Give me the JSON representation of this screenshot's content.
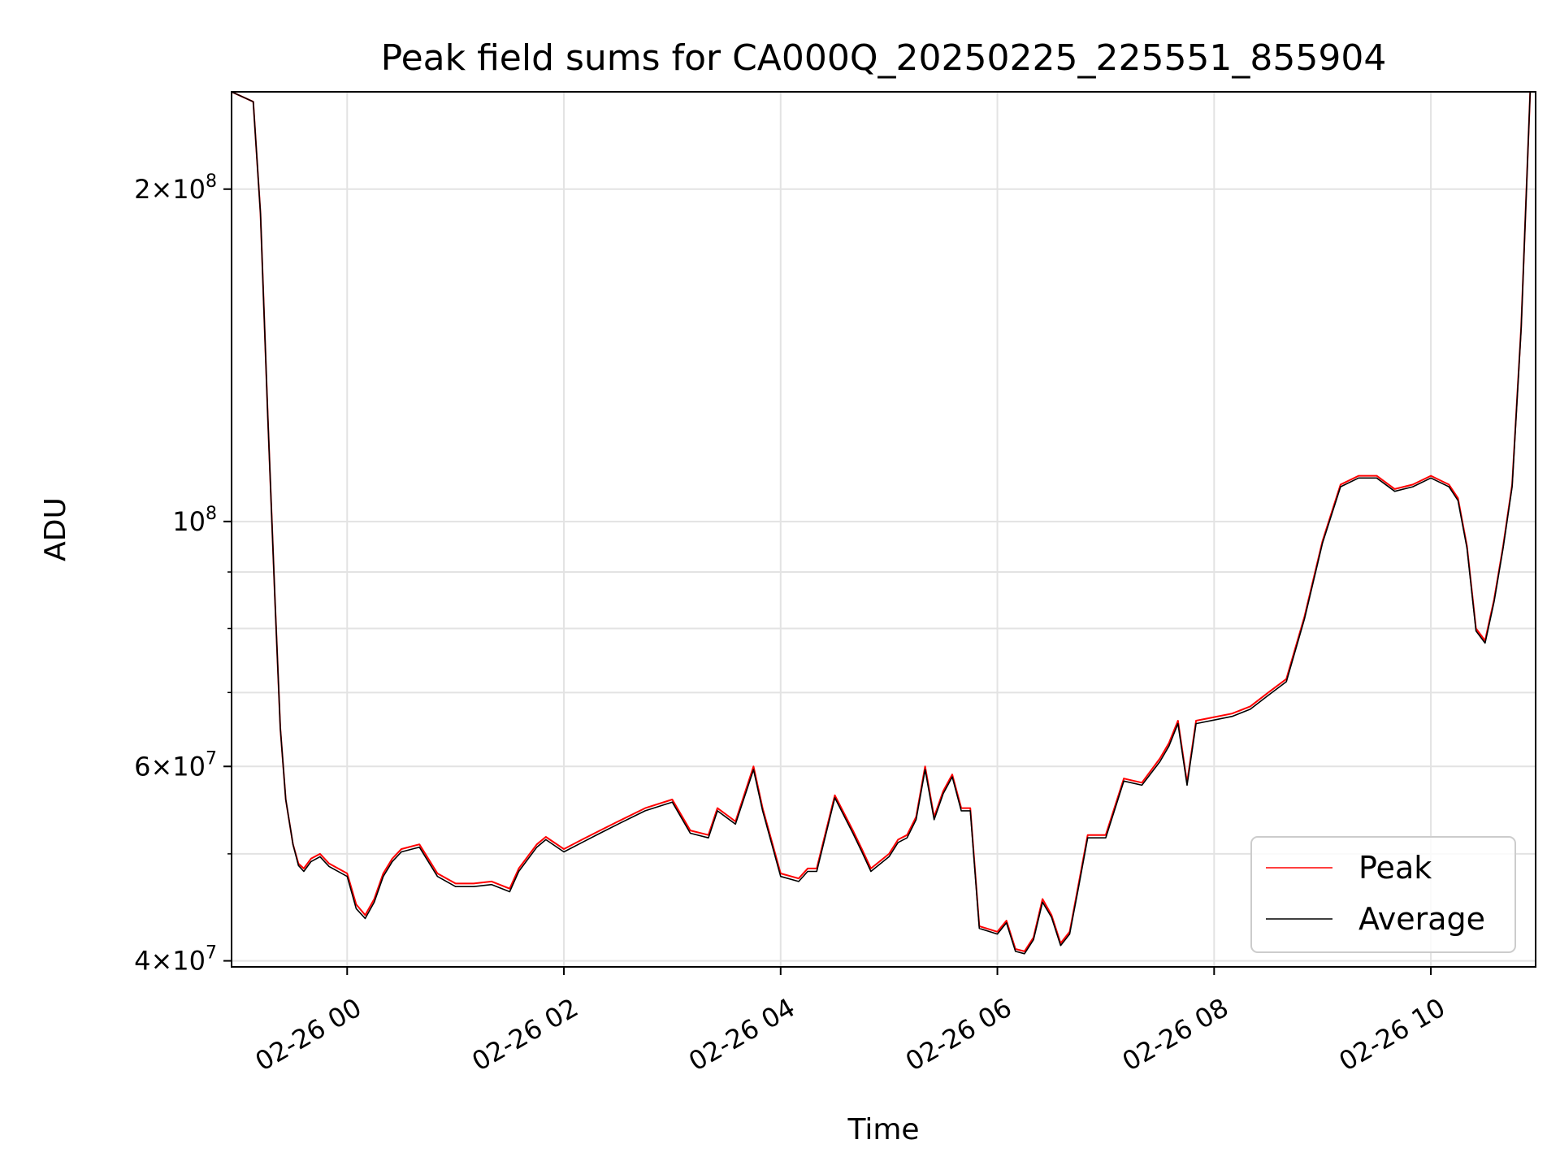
{
  "chart_data": {
    "type": "line",
    "title": "Peak field sums for CA000Q_20250225_225551_855904",
    "xlabel": "Time",
    "ylabel": "ADU",
    "y_scale": "log",
    "ylim": [
      39500000,
      245000000
    ],
    "xlim": [
      "2025-02-25 22:56",
      "2025-02-26 10:58"
    ],
    "grid": true,
    "legend_position": "lower-right",
    "x_ticks": [
      "2025-02-26 00:00",
      "2025-02-26 02:00",
      "2025-02-26 04:00",
      "2025-02-26 06:00",
      "2025-02-26 08:00",
      "2025-02-26 10:00"
    ],
    "x_tick_labels": [
      "02-26 00",
      "02-26 02",
      "02-26 04",
      "02-26 06",
      "02-26 08",
      "02-26 10"
    ],
    "y_major_ticks": [
      40000000,
      60000000,
      100000000,
      200000000
    ],
    "y_major_labels": [
      {
        "mantissa": "4",
        "exponent": "7"
      },
      {
        "mantissa": "6",
        "exponent": "7"
      },
      {
        "mantissa": "",
        "exponent": "8"
      },
      {
        "mantissa": "2",
        "exponent": "8"
      }
    ],
    "y_minor_ticks": [
      50000000,
      70000000,
      80000000,
      90000000
    ],
    "series": [
      {
        "name": "Peak",
        "color": "#ff0000",
        "x": [
          "2025-02-25 22:56",
          "2025-02-25 23:08",
          "2025-02-25 23:12",
          "2025-02-25 23:16",
          "2025-02-25 23:20",
          "2025-02-25 23:23",
          "2025-02-25 23:26",
          "2025-02-25 23:30",
          "2025-02-25 23:33",
          "2025-02-25 23:36",
          "2025-02-25 23:40",
          "2025-02-25 23:45",
          "2025-02-25 23:50",
          "2025-02-26 00:00",
          "2025-02-26 00:05",
          "2025-02-26 00:10",
          "2025-02-26 00:15",
          "2025-02-26 00:20",
          "2025-02-26 00:25",
          "2025-02-26 00:30",
          "2025-02-26 00:40",
          "2025-02-26 00:50",
          "2025-02-26 01:00",
          "2025-02-26 01:10",
          "2025-02-26 01:20",
          "2025-02-26 01:30",
          "2025-02-26 01:35",
          "2025-02-26 01:45",
          "2025-02-26 01:50",
          "2025-02-26 02:00",
          "2025-02-26 02:10",
          "2025-02-26 02:20",
          "2025-02-26 02:30",
          "2025-02-26 02:45",
          "2025-02-26 03:00",
          "2025-02-26 03:10",
          "2025-02-26 03:20",
          "2025-02-26 03:25",
          "2025-02-26 03:35",
          "2025-02-26 03:45",
          "2025-02-26 03:50",
          "2025-02-26 04:00",
          "2025-02-26 04:10",
          "2025-02-26 04:15",
          "2025-02-26 04:20",
          "2025-02-26 04:30",
          "2025-02-26 04:40",
          "2025-02-26 04:45",
          "2025-02-26 04:50",
          "2025-02-26 05:00",
          "2025-02-26 05:05",
          "2025-02-26 05:10",
          "2025-02-26 05:15",
          "2025-02-26 05:20",
          "2025-02-26 05:25",
          "2025-02-26 05:30",
          "2025-02-26 05:35",
          "2025-02-26 05:40",
          "2025-02-26 05:45",
          "2025-02-26 05:50",
          "2025-02-26 06:00",
          "2025-02-26 06:05",
          "2025-02-26 06:10",
          "2025-02-26 06:15",
          "2025-02-26 06:20",
          "2025-02-26 06:25",
          "2025-02-26 06:30",
          "2025-02-26 06:35",
          "2025-02-26 06:40",
          "2025-02-26 06:45",
          "2025-02-26 06:50",
          "2025-02-26 07:00",
          "2025-02-26 07:10",
          "2025-02-26 07:20",
          "2025-02-26 07:30",
          "2025-02-26 07:35",
          "2025-02-26 07:40",
          "2025-02-26 07:45",
          "2025-02-26 07:50",
          "2025-02-26 08:00",
          "2025-02-26 08:10",
          "2025-02-26 08:20",
          "2025-02-26 08:30",
          "2025-02-26 08:40",
          "2025-02-26 08:50",
          "2025-02-26 09:00",
          "2025-02-26 09:10",
          "2025-02-26 09:20",
          "2025-02-26 09:30",
          "2025-02-26 09:40",
          "2025-02-26 09:50",
          "2025-02-26 10:00",
          "2025-02-26 10:10",
          "2025-02-26 10:15",
          "2025-02-26 10:20",
          "2025-02-26 10:25",
          "2025-02-26 10:30",
          "2025-02-26 10:35",
          "2025-02-26 10:40",
          "2025-02-26 10:45",
          "2025-02-26 10:50",
          "2025-02-26 10:55"
        ],
        "y": [
          245000000,
          240000000,
          190000000,
          125000000,
          85000000,
          65000000,
          56000000,
          51000000,
          49000000,
          48500000,
          49500000,
          50000000,
          49000000,
          48000000,
          45000000,
          44000000,
          45500000,
          48000000,
          49500000,
          50500000,
          51000000,
          48000000,
          47000000,
          47000000,
          47200000,
          46500000,
          48500000,
          51000000,
          51800000,
          50500000,
          51500000,
          52500000,
          53500000,
          55000000,
          56000000,
          52500000,
          52000000,
          55000000,
          53500000,
          60000000,
          55000000,
          48000000,
          47500000,
          48500000,
          48500000,
          56500000,
          52500000,
          50500000,
          48500000,
          50000000,
          51500000,
          52000000,
          54000000,
          60000000,
          54000000,
          57000000,
          59000000,
          55000000,
          55000000,
          43000000,
          42500000,
          43500000,
          41000000,
          40800000,
          42000000,
          45500000,
          44000000,
          41500000,
          42500000,
          47000000,
          52000000,
          52000000,
          58500000,
          58000000,
          61000000,
          63000000,
          66000000,
          58000000,
          66000000,
          66500000,
          67000000,
          68000000,
          70000000,
          72000000,
          82000000,
          96000000,
          108000000,
          110000000,
          110000000,
          107000000,
          108000000,
          110000000,
          108000000,
          105000000,
          95000000,
          80000000,
          78000000,
          85000000,
          95000000,
          108000000,
          150000000,
          245000000
        ]
      },
      {
        "name": "Average",
        "color": "#000000",
        "x": [
          "2025-02-25 22:56",
          "2025-02-25 23:08",
          "2025-02-25 23:12",
          "2025-02-25 23:16",
          "2025-02-25 23:20",
          "2025-02-25 23:23",
          "2025-02-25 23:26",
          "2025-02-25 23:30",
          "2025-02-25 23:33",
          "2025-02-25 23:36",
          "2025-02-25 23:40",
          "2025-02-25 23:45",
          "2025-02-25 23:50",
          "2025-02-26 00:00",
          "2025-02-26 00:05",
          "2025-02-26 00:10",
          "2025-02-26 00:15",
          "2025-02-26 00:20",
          "2025-02-26 00:25",
          "2025-02-26 00:30",
          "2025-02-26 00:40",
          "2025-02-26 00:50",
          "2025-02-26 01:00",
          "2025-02-26 01:10",
          "2025-02-26 01:20",
          "2025-02-26 01:30",
          "2025-02-26 01:35",
          "2025-02-26 01:45",
          "2025-02-26 01:50",
          "2025-02-26 02:00",
          "2025-02-26 02:10",
          "2025-02-26 02:20",
          "2025-02-26 02:30",
          "2025-02-26 02:45",
          "2025-02-26 03:00",
          "2025-02-26 03:10",
          "2025-02-26 03:20",
          "2025-02-26 03:25",
          "2025-02-26 03:35",
          "2025-02-26 03:45",
          "2025-02-26 03:50",
          "2025-02-26 04:00",
          "2025-02-26 04:10",
          "2025-02-26 04:15",
          "2025-02-26 04:20",
          "2025-02-26 04:30",
          "2025-02-26 04:40",
          "2025-02-26 04:45",
          "2025-02-26 04:50",
          "2025-02-26 05:00",
          "2025-02-26 05:05",
          "2025-02-26 05:10",
          "2025-02-26 05:15",
          "2025-02-26 05:20",
          "2025-02-26 05:25",
          "2025-02-26 05:30",
          "2025-02-26 05:35",
          "2025-02-26 05:40",
          "2025-02-26 05:45",
          "2025-02-26 05:50",
          "2025-02-26 06:00",
          "2025-02-26 06:05",
          "2025-02-26 06:10",
          "2025-02-26 06:15",
          "2025-02-26 06:20",
          "2025-02-26 06:25",
          "2025-02-26 06:30",
          "2025-02-26 06:35",
          "2025-02-26 06:40",
          "2025-02-26 06:45",
          "2025-02-26 06:50",
          "2025-02-26 07:00",
          "2025-02-26 07:10",
          "2025-02-26 07:20",
          "2025-02-26 07:30",
          "2025-02-26 07:35",
          "2025-02-26 07:40",
          "2025-02-26 07:45",
          "2025-02-26 07:50",
          "2025-02-26 08:00",
          "2025-02-26 08:10",
          "2025-02-26 08:20",
          "2025-02-26 08:30",
          "2025-02-26 08:40",
          "2025-02-26 08:50",
          "2025-02-26 09:00",
          "2025-02-26 09:10",
          "2025-02-26 09:20",
          "2025-02-26 09:30",
          "2025-02-26 09:40",
          "2025-02-26 09:50",
          "2025-02-26 10:00",
          "2025-02-26 10:10",
          "2025-02-26 10:15",
          "2025-02-26 10:20",
          "2025-02-26 10:25",
          "2025-02-26 10:30",
          "2025-02-26 10:35",
          "2025-02-26 10:40",
          "2025-02-26 10:45",
          "2025-02-26 10:50",
          "2025-02-26 10:55"
        ],
        "y": [
          245000000,
          240000000,
          190000000,
          125000000,
          85000000,
          65000000,
          56000000,
          51000000,
          48800000,
          48200000,
          49200000,
          49700000,
          48700000,
          47700000,
          44600000,
          43700000,
          45200000,
          47700000,
          49200000,
          50200000,
          50700000,
          47700000,
          46700000,
          46700000,
          46900000,
          46200000,
          48200000,
          50700000,
          51500000,
          50200000,
          51200000,
          52200000,
          53200000,
          54700000,
          55700000,
          52200000,
          51700000,
          54700000,
          53200000,
          59600000,
          54700000,
          47700000,
          47200000,
          48200000,
          48200000,
          56200000,
          52200000,
          50200000,
          48200000,
          49700000,
          51200000,
          51700000,
          53700000,
          59600000,
          53700000,
          56700000,
          58700000,
          54700000,
          54700000,
          42800000,
          42300000,
          43300000,
          40800000,
          40600000,
          41800000,
          45200000,
          43800000,
          41300000,
          42300000,
          46700000,
          51700000,
          51700000,
          58200000,
          57700000,
          60600000,
          62600000,
          65600000,
          57700000,
          65600000,
          66100000,
          66600000,
          67600000,
          69600000,
          71600000,
          81600000,
          95600000,
          107500000,
          109500000,
          109500000,
          106500000,
          107500000,
          109500000,
          107500000,
          104500000,
          94600000,
          79600000,
          77600000,
          84600000,
          94600000,
          107500000,
          149500000,
          245000000
        ]
      }
    ]
  }
}
